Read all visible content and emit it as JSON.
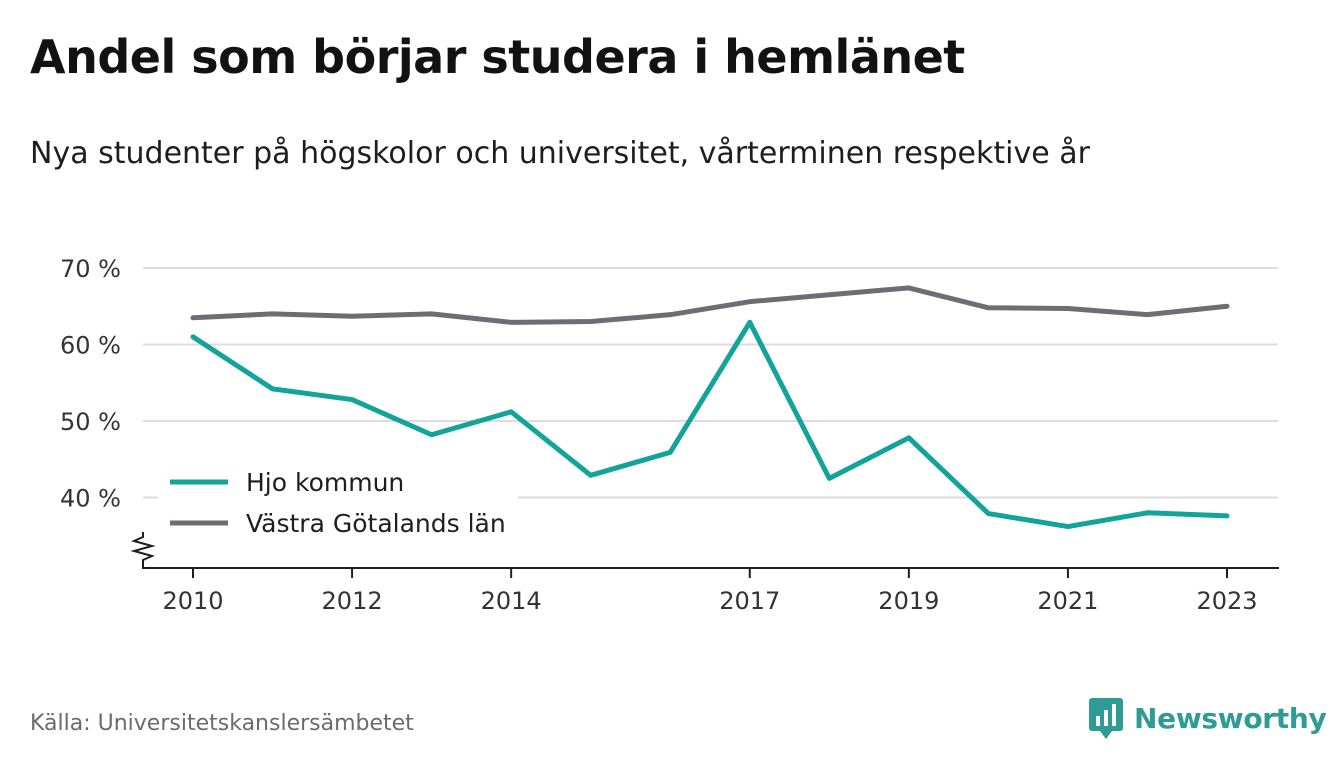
{
  "title": "Andel som börjar studera i hemlänet",
  "subtitle": "Nya studenter på högskolor och universitet, vårterminen respektive år",
  "source": "Källa: Universitetskanslersämbetet",
  "brand": {
    "name": "Newsworthy",
    "icon": "newsworthy-logo-icon",
    "color": "#2f9b95"
  },
  "chart_data": {
    "type": "line",
    "x": [
      2010,
      2011,
      2012,
      2013,
      2014,
      2015,
      2016,
      2017,
      2018,
      2019,
      2020,
      2021,
      2022,
      2023
    ],
    "x_tick_labels": [
      "2010",
      "2012",
      "2014",
      "2017",
      "2019",
      "2021",
      "2023"
    ],
    "y_tick_labels": [
      "70 %",
      "60 %",
      "50 %",
      "40 %"
    ],
    "y_ticks": [
      70,
      60,
      50,
      40
    ],
    "ylim": [
      31,
      70
    ],
    "grid": true,
    "legend_position": "bottom-left",
    "series": [
      {
        "name": "Hjo kommun",
        "color": "#12a39a",
        "values": [
          61.0,
          54.2,
          52.8,
          48.2,
          51.2,
          42.9,
          45.9,
          62.9,
          42.5,
          47.8,
          37.9,
          36.2,
          38.0,
          37.6
        ]
      },
      {
        "name": "Västra Götalands län",
        "color": "#6e6d75",
        "values": [
          63.5,
          64.0,
          63.7,
          64.0,
          62.9,
          63.0,
          63.9,
          65.6,
          66.5,
          67.4,
          64.8,
          64.7,
          63.9,
          65.0
        ]
      }
    ]
  }
}
